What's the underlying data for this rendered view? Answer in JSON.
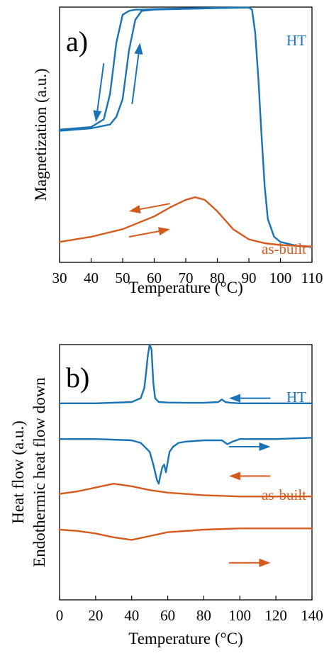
{
  "colors": {
    "blue": "#1a73b5",
    "orange": "#d45a1e",
    "axis": "#000000"
  },
  "chart_data": [
    {
      "type": "line",
      "panel_label": "a)",
      "xlabel": "Temperature (°C)",
      "ylabel": "Magnetization (a.u.)",
      "xlim": [
        30,
        110
      ],
      "ylim": [
        0,
        1
      ],
      "xticks": [
        30,
        40,
        50,
        60,
        70,
        80,
        90,
        100,
        110
      ],
      "series": [
        {
          "name": "HT",
          "color": "blue",
          "label_color": "blue",
          "paths": [
            {
              "x": [
                30,
                40,
                44,
                46,
                48,
                50,
                52,
                54,
                56,
                60,
                70,
                80,
                90,
                91,
                92,
                93,
                94,
                95,
                96,
                98,
                100,
                105,
                110
              ],
              "y": [
                0.52,
                0.53,
                0.56,
                0.66,
                0.86,
                0.97,
                0.985,
                0.99,
                0.99,
                0.992,
                0.995,
                0.997,
                0.998,
                0.99,
                0.9,
                0.72,
                0.5,
                0.3,
                0.17,
                0.1,
                0.08,
                0.065,
                0.06
              ]
            },
            {
              "x": [
                30,
                40,
                46,
                48,
                50,
                52,
                54,
                56,
                60,
                70,
                80,
                90
              ],
              "y": [
                0.515,
                0.525,
                0.54,
                0.57,
                0.64,
                0.83,
                0.95,
                0.985,
                0.99,
                0.993,
                0.996,
                0.998
              ]
            }
          ]
        },
        {
          "name": "as-built",
          "color": "orange",
          "label_color": "orange",
          "paths": [
            {
              "x": [
                30,
                40,
                50,
                60,
                65,
                70,
                73,
                76,
                80,
                85,
                90,
                95,
                100,
                110
              ],
              "y": [
                0.08,
                0.1,
                0.13,
                0.18,
                0.215,
                0.245,
                0.255,
                0.245,
                0.2,
                0.13,
                0.09,
                0.075,
                0.068,
                0.062
              ]
            }
          ]
        }
      ],
      "arrows": [
        {
          "color": "blue",
          "from": [
            44,
            0.78
          ],
          "to": [
            41.5,
            0.55
          ]
        },
        {
          "color": "blue",
          "from": [
            53,
            0.62
          ],
          "to": [
            55.5,
            0.86
          ]
        },
        {
          "color": "orange",
          "from": [
            65,
            0.23
          ],
          "to": [
            52,
            0.2
          ]
        },
        {
          "color": "orange",
          "from": [
            52,
            0.1
          ],
          "to": [
            65,
            0.13
          ]
        }
      ]
    },
    {
      "type": "line",
      "panel_label": "b)",
      "xlabel": "Temperature (°C)",
      "ylabel": "Heat flow (a.u.)",
      "ylabel2": "Endothermic heat flow down",
      "xlim": [
        0,
        140
      ],
      "ylim": [
        0,
        1
      ],
      "xticks": [
        0,
        20,
        40,
        60,
        80,
        100,
        120,
        140
      ],
      "series": [
        {
          "name": "HT",
          "color": "blue",
          "label_color": "blue",
          "x": [
            0,
            20,
            40,
            45,
            47,
            48,
            49,
            50,
            51,
            52,
            53,
            55,
            60,
            70,
            80,
            88,
            90,
            92,
            95,
            100,
            120,
            140
          ],
          "y": [
            0.77,
            0.77,
            0.775,
            0.79,
            0.83,
            0.89,
            0.96,
            1.0,
            0.98,
            0.85,
            0.79,
            0.775,
            0.773,
            0.772,
            0.772,
            0.775,
            0.785,
            0.775,
            0.772,
            0.77,
            0.77,
            0.77
          ]
        },
        {
          "name": "",
          "color": "blue",
          "x": [
            0,
            20,
            40,
            45,
            50,
            52,
            54,
            55,
            56,
            57,
            58,
            59,
            60,
            61,
            63,
            66,
            70,
            80,
            90,
            93,
            96,
            100,
            120,
            140
          ],
          "y": [
            0.63,
            0.63,
            0.625,
            0.615,
            0.58,
            0.53,
            0.47,
            0.455,
            0.49,
            0.52,
            0.53,
            0.5,
            0.54,
            0.58,
            0.6,
            0.615,
            0.62,
            0.625,
            0.625,
            0.61,
            0.62,
            0.63,
            0.63,
            0.635
          ]
        },
        {
          "name": "as-built",
          "color": "orange",
          "label_color": "orange",
          "x": [
            0,
            10,
            20,
            30,
            40,
            50,
            60,
            80,
            100,
            120,
            140
          ],
          "y": [
            0.415,
            0.425,
            0.44,
            0.455,
            0.445,
            0.43,
            0.42,
            0.41,
            0.405,
            0.405,
            0.405
          ]
        },
        {
          "name": "",
          "color": "orange",
          "x": [
            0,
            10,
            20,
            30,
            40,
            50,
            60,
            80,
            100,
            120,
            140
          ],
          "y": [
            0.275,
            0.27,
            0.26,
            0.245,
            0.235,
            0.25,
            0.265,
            0.275,
            0.28,
            0.28,
            0.28
          ]
        }
      ],
      "arrows": [
        {
          "color": "blue",
          "from": [
            117,
            0.79
          ],
          "to": [
            94,
            0.79
          ]
        },
        {
          "color": "blue",
          "from": [
            94,
            0.6
          ],
          "to": [
            117,
            0.6
          ]
        },
        {
          "color": "orange",
          "from": [
            117,
            0.485
          ],
          "to": [
            94,
            0.485
          ]
        },
        {
          "color": "orange",
          "from": [
            94,
            0.145
          ],
          "to": [
            117,
            0.145
          ]
        }
      ]
    }
  ]
}
